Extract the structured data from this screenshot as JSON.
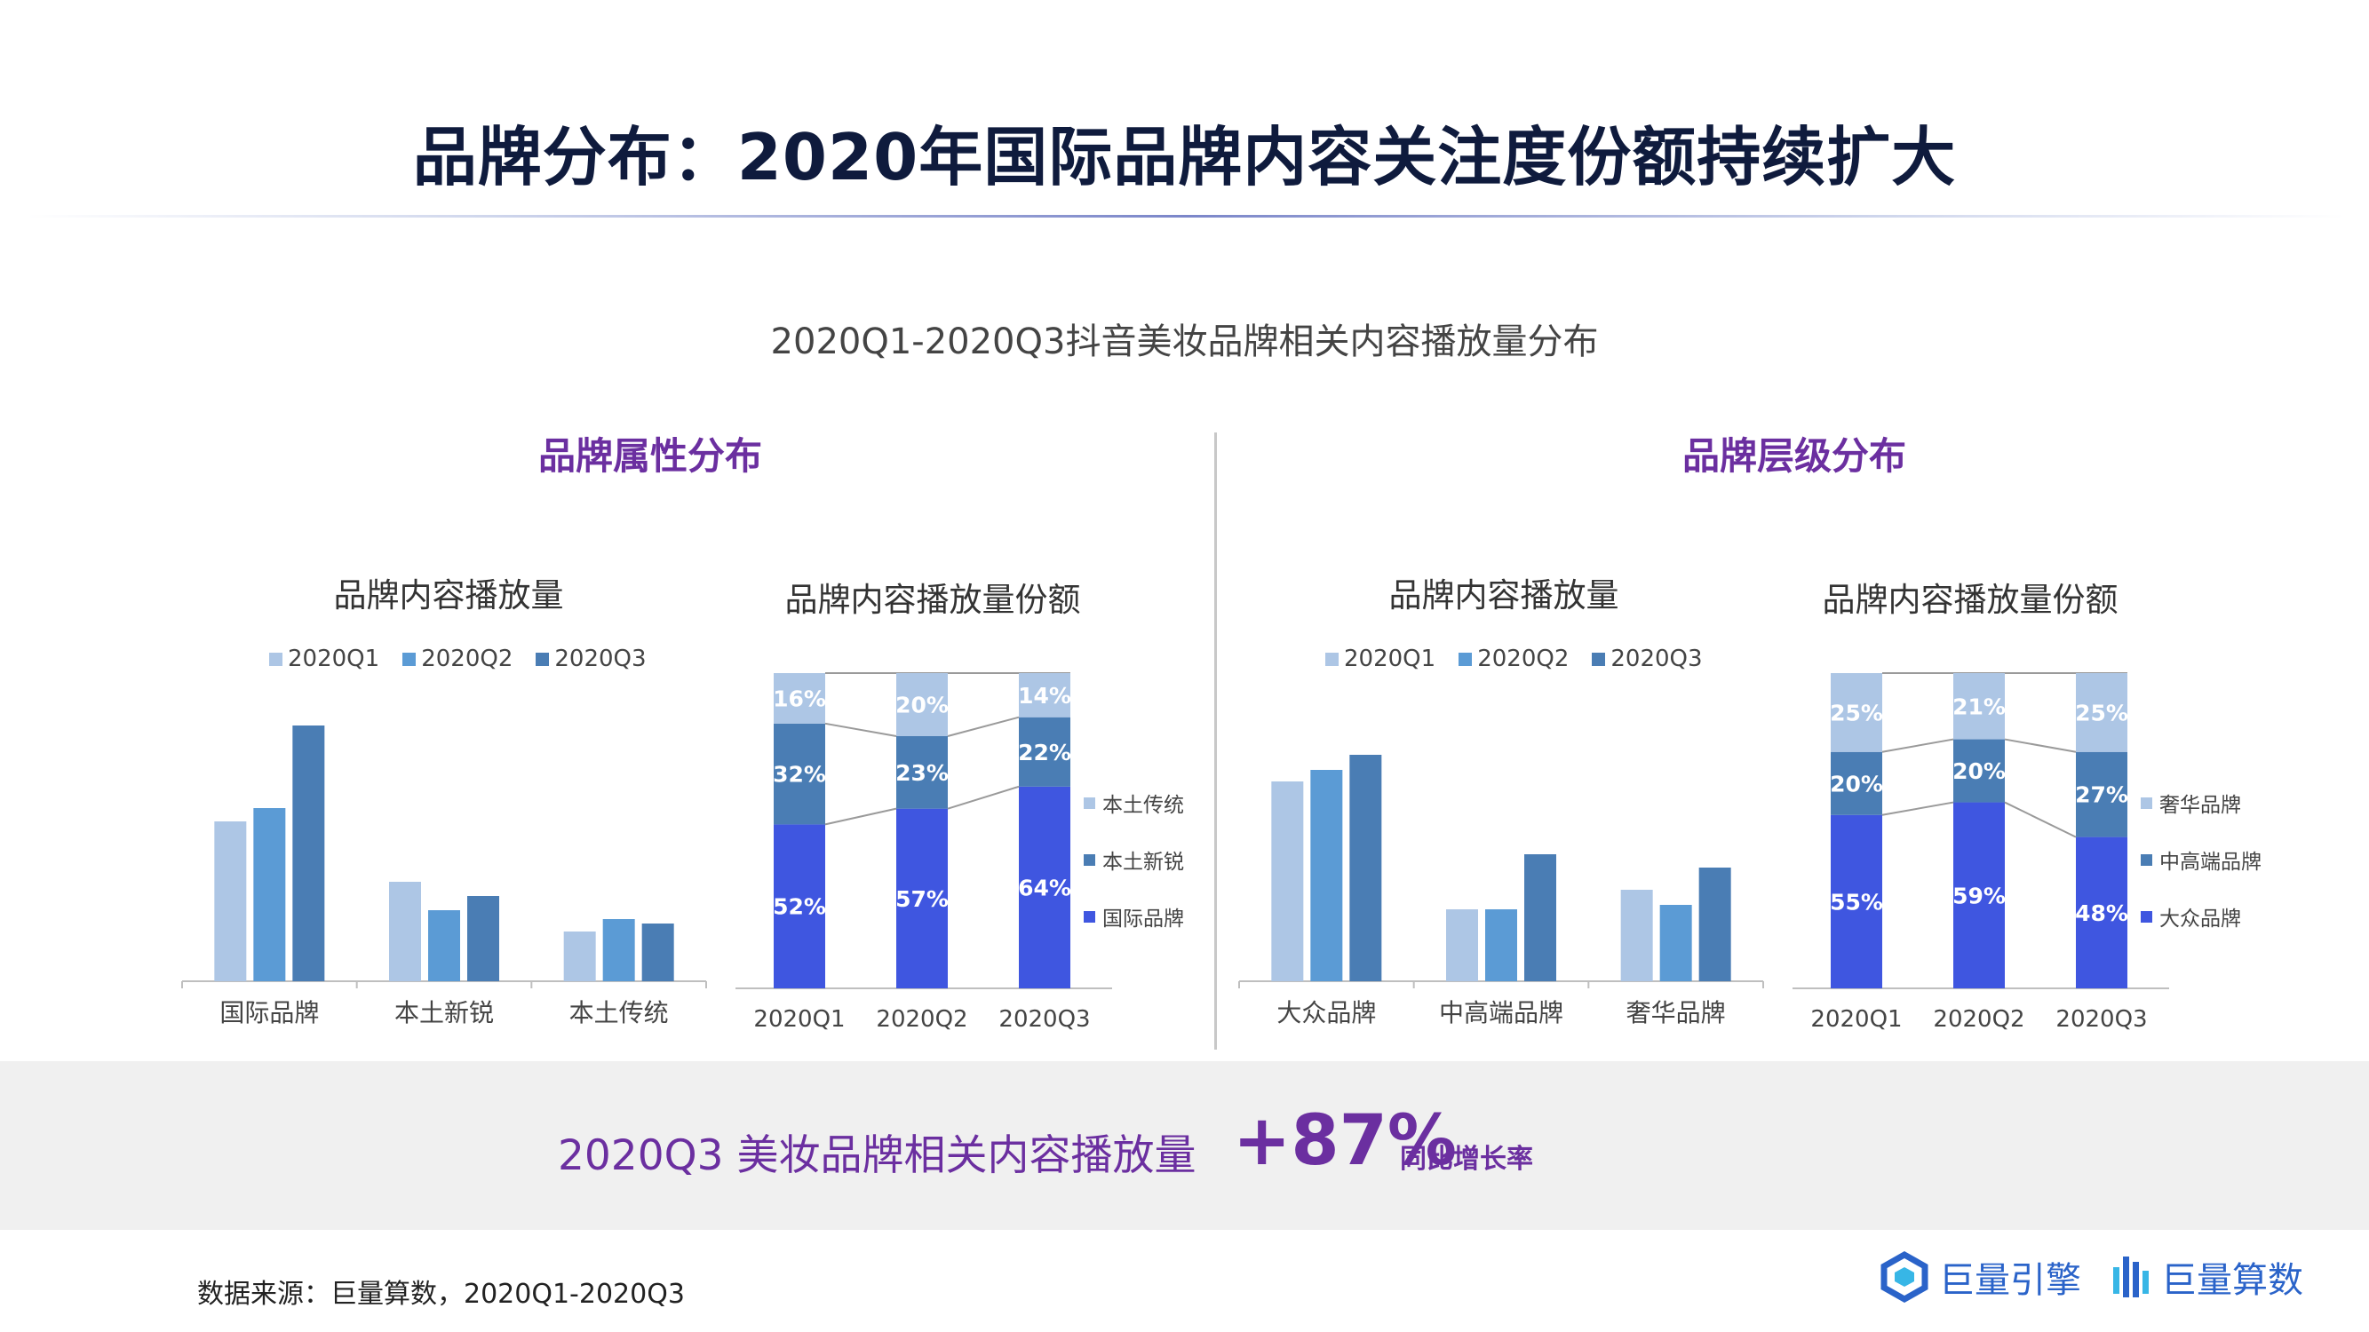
{
  "title": "品牌分布：2020年国际品牌内容关注度份额持续扩大",
  "subtitle": "2020Q1-2020Q3抖音美妆品牌相关内容播放量分布",
  "sections": {
    "left": "品牌属性分布",
    "right": "品牌层级分布"
  },
  "colors": {
    "q1": "#adc6e5",
    "q2": "#5b9bd5",
    "q3": "#4a7db4",
    "stack_top": "#adc6e5",
    "stack_mid": "#4a7db4",
    "stack_bottom": "#3f56e0",
    "purple": "#6b2fa0"
  },
  "highlight": {
    "label": "2020Q3 美妆品牌相关内容播放量",
    "value": "+87%",
    "suffix": "同比增长率"
  },
  "source": "数据来源：巨量算数，2020Q1-2020Q3",
  "logos": {
    "engine": "巨量引擎",
    "suanshu": "巨量算数"
  },
  "chart_data": [
    {
      "type": "bar",
      "title": "品牌内容播放量",
      "categories": [
        "国际品牌",
        "本土新锐",
        "本土传统"
      ],
      "series": [
        {
          "name": "2020Q1",
          "values": [
            180,
            112,
            56
          ]
        },
        {
          "name": "2020Q2",
          "values": [
            195,
            80,
            70
          ]
        },
        {
          "name": "2020Q3",
          "values": [
            288,
            96,
            65
          ]
        }
      ],
      "ylim": [
        0,
        300
      ]
    },
    {
      "type": "bar",
      "stacked": true,
      "percent": true,
      "title": "品牌内容播放量份额",
      "categories": [
        "2020Q1",
        "2020Q2",
        "2020Q3"
      ],
      "series": [
        {
          "name": "国际品牌",
          "values": [
            52,
            57,
            64
          ],
          "labels": [
            "52%",
            "57%",
            "64%"
          ]
        },
        {
          "name": "本土新锐",
          "values": [
            32,
            23,
            22
          ],
          "labels": [
            "32%",
            "23%",
            "22%"
          ]
        },
        {
          "name": "本土传统",
          "values": [
            16,
            20,
            14
          ],
          "labels": [
            "16%",
            "20%",
            "14%"
          ]
        }
      ]
    },
    {
      "type": "bar",
      "title": "品牌内容播放量",
      "categories": [
        "大众品牌",
        "中高端品牌",
        "奢华品牌"
      ],
      "series": [
        {
          "name": "2020Q1",
          "values": [
            225,
            81,
            103
          ]
        },
        {
          "name": "2020Q2",
          "values": [
            238,
            81,
            86
          ]
        },
        {
          "name": "2020Q3",
          "values": [
            255,
            143,
            128
          ]
        }
      ],
      "ylim": [
        0,
        300
      ]
    },
    {
      "type": "bar",
      "stacked": true,
      "percent": true,
      "title": "品牌内容播放量份额",
      "categories": [
        "2020Q1",
        "2020Q2",
        "2020Q3"
      ],
      "series": [
        {
          "name": "大众品牌",
          "values": [
            55,
            59,
            48
          ],
          "labels": [
            "55%",
            "59%",
            "48%"
          ]
        },
        {
          "name": "中高端品牌",
          "values": [
            20,
            20,
            27
          ],
          "labels": [
            "20%",
            "20%",
            "27%"
          ]
        },
        {
          "name": "奢华品牌",
          "values": [
            25,
            21,
            25
          ],
          "labels": [
            "25%",
            "21%",
            "25%"
          ]
        }
      ]
    }
  ]
}
